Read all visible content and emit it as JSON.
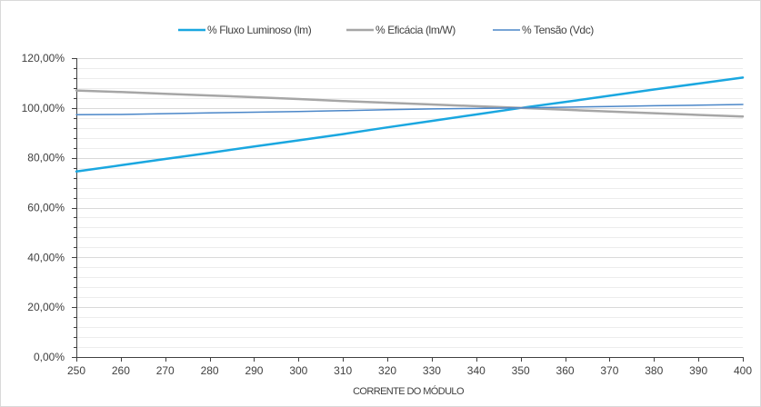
{
  "chart_data": {
    "type": "line",
    "title": "",
    "xlabel": "CORRENTE DO MÓDULO",
    "ylabel": "",
    "x": [
      250,
      260,
      270,
      280,
      290,
      300,
      310,
      320,
      330,
      340,
      350,
      360,
      370,
      380,
      390,
      400
    ],
    "xlim": [
      250,
      400
    ],
    "x_ticks": [
      "250",
      "260",
      "270",
      "280",
      "290",
      "300",
      "310",
      "320",
      "330",
      "340",
      "350",
      "360",
      "370",
      "380",
      "390",
      "400"
    ],
    "ylim": [
      0,
      120
    ],
    "y_ticks": [
      {
        "value": 0,
        "label": "0,00%"
      },
      {
        "value": 20,
        "label": "20,00%"
      },
      {
        "value": 40,
        "label": "40,00%"
      },
      {
        "value": 60,
        "label": "60,00%"
      },
      {
        "value": 80,
        "label": "80,00%"
      },
      {
        "value": 100,
        "label": "100,00%"
      },
      {
        "value": 120,
        "label": "120,00%"
      }
    ],
    "grid": "horizontal",
    "legend_position": "top",
    "series": [
      {
        "name": "% Fluxo Luminoso (lm)",
        "color": "#1aa7e0",
        "width": "thick",
        "values": [
          74.5,
          77.0,
          79.5,
          82.0,
          84.5,
          87.0,
          89.5,
          92.2,
          94.8,
          97.4,
          100.0,
          102.4,
          104.9,
          107.4,
          109.8,
          112.2
        ]
      },
      {
        "name": "% Eficácia (lm/W)",
        "color": "#a6a6a6",
        "width": "thick",
        "values": [
          107.0,
          106.4,
          105.7,
          105.0,
          104.3,
          103.6,
          102.8,
          102.1,
          101.4,
          100.7,
          100.0,
          99.3,
          98.6,
          97.9,
          97.2,
          96.6
        ]
      },
      {
        "name": "% Tensão (Vdc)",
        "color": "#4a86c8",
        "width": "thin",
        "values": [
          97.3,
          97.4,
          97.7,
          98.0,
          98.3,
          98.6,
          98.9,
          99.3,
          99.6,
          99.8,
          100.0,
          100.3,
          100.6,
          100.9,
          101.1,
          101.4
        ]
      }
    ]
  }
}
